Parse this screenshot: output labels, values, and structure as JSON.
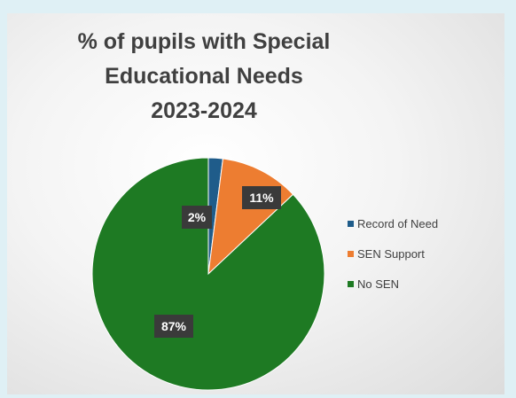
{
  "chart_data": {
    "type": "pie",
    "title_lines": [
      "% of pupils with Special",
      "Educational Needs",
      "2023-2024"
    ],
    "categories": [
      "Record of Need",
      "SEN Support",
      "No SEN"
    ],
    "values": [
      2,
      11,
      87
    ],
    "data_labels": [
      "2%",
      "11%",
      "87%"
    ],
    "colors": [
      "#1f5c8a",
      "#ed7d31",
      "#1e7a23"
    ],
    "legend": "right"
  }
}
